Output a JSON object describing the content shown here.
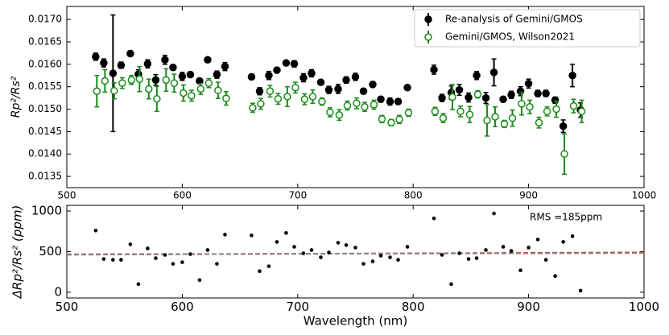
{
  "chart_data": [
    {
      "type": "errorbar",
      "ylabel": "Rp²/Rs²",
      "xlim": [
        500,
        1000
      ],
      "xticks": [
        500,
        600,
        700,
        800,
        900,
        1000
      ],
      "ylim": [
        0.01325,
        0.01729
      ],
      "yticks": [
        {
          "value": 0.0135,
          "label": "0.0135"
        },
        {
          "value": 0.014,
          "label": "0.0140"
        },
        {
          "value": 0.0145,
          "label": "0.0145"
        },
        {
          "value": 0.015,
          "label": "0.0150"
        },
        {
          "value": 0.0155,
          "label": "0.0155"
        },
        {
          "value": 0.016,
          "label": "0.0160"
        },
        {
          "value": 0.0165,
          "label": "0.0165"
        },
        {
          "value": 0.017,
          "label": "0.0170"
        }
      ],
      "legend": "upper right",
      "series": [
        {
          "name": "Re-analysis of Gemini/GMOS",
          "color": "#000000",
          "marker": "filled",
          "x": [
            525,
            532,
            540,
            547,
            555,
            562,
            570,
            577,
            585,
            592,
            600,
            607,
            615,
            622,
            630,
            637,
            660,
            667,
            675,
            682,
            690,
            697,
            705,
            712,
            720,
            727,
            735,
            742,
            750,
            757,
            765,
            772,
            780,
            787,
            795,
            818,
            825,
            833,
            840,
            848,
            855,
            863,
            870,
            878,
            885,
            893,
            900,
            908,
            915,
            923,
            930,
            938,
            945
          ],
          "values": [
            0.01617,
            0.01603,
            0.0158,
            0.01598,
            0.01624,
            0.01578,
            0.01601,
            0.01565,
            0.0161,
            0.01593,
            0.01573,
            0.01577,
            0.01563,
            0.0161,
            0.01577,
            0.01595,
            0.01572,
            0.0154,
            0.01575,
            0.01587,
            0.01603,
            0.01601,
            0.0157,
            0.0158,
            0.0156,
            0.01543,
            0.01545,
            0.01565,
            0.01572,
            0.0154,
            0.01555,
            0.01522,
            0.01517,
            0.01517,
            0.01548,
            0.01588,
            0.01525,
            0.01537,
            0.01543,
            0.01526,
            0.01575,
            0.01525,
            0.01582,
            0.01522,
            0.01532,
            0.0154,
            0.01557,
            0.01535,
            0.01535,
            0.0152,
            0.01462,
            0.01575,
            0.01498
          ],
          "errors": [
            8e-05,
            9e-05,
            0.0013,
            7e-05,
            6e-05,
            0.0001,
            9e-05,
            0.00012,
            0.0001,
            6e-05,
            9e-05,
            6e-05,
            5e-05,
            5e-05,
            8e-05,
            9e-05,
            6e-05,
            8e-05,
            9e-05,
            6e-05,
            5e-05,
            7e-05,
            9e-05,
            8e-05,
            5e-05,
            8e-05,
            0.0001,
            7e-05,
            8e-05,
            6e-05,
            6e-05,
            6e-05,
            8e-05,
            6e-05,
            5e-05,
            0.0001,
            8e-05,
            0.00015,
            0.00012,
            0.0001,
            9e-05,
            0.00012,
            0.0003,
            6e-05,
            8e-05,
            0.0001,
            0.0001,
            7e-05,
            7e-05,
            7e-05,
            0.00014,
            0.00025,
            0.00016
          ]
        },
        {
          "name": "Gemini/GMOS, Wilson2021",
          "color": "#1a8a1a",
          "marker": "open",
          "x": [
            526,
            533,
            541,
            548,
            556,
            563,
            571,
            578,
            586,
            593,
            601,
            608,
            616,
            623,
            631,
            638,
            661,
            668,
            676,
            683,
            691,
            698,
            706,
            713,
            721,
            728,
            736,
            743,
            751,
            758,
            766,
            773,
            781,
            788,
            796,
            819,
            826,
            834,
            841,
            849,
            856,
            864,
            871,
            879,
            886,
            894,
            901,
            909,
            916,
            924,
            931,
            939,
            946
          ],
          "values": [
            0.0154,
            0.01563,
            0.01541,
            0.01558,
            0.01565,
            0.01567,
            0.01545,
            0.01523,
            0.01565,
            0.01558,
            0.01536,
            0.0153,
            0.01545,
            0.01558,
            0.01542,
            0.01524,
            0.01503,
            0.01512,
            0.0154,
            0.01523,
            0.01528,
            0.01548,
            0.01522,
            0.01528,
            0.01517,
            0.01493,
            0.01487,
            0.01508,
            0.01513,
            0.01505,
            0.0151,
            0.01478,
            0.0147,
            0.01477,
            0.01492,
            0.01495,
            0.0148,
            0.01527,
            0.01495,
            0.01488,
            0.01533,
            0.01475,
            0.01483,
            0.01467,
            0.0148,
            0.01512,
            0.01505,
            0.0147,
            0.01495,
            0.015,
            0.014,
            0.01507,
            0.01495
          ],
          "errors": [
            0.00035,
            0.00025,
            0.00018,
            0.00012,
            0.0001,
            0.00028,
            0.00022,
            0.00028,
            0.00025,
            0.0002,
            0.00018,
            0.00012,
            0.00012,
            0.0001,
            0.00018,
            0.00015,
            0.0001,
            0.00012,
            0.00013,
            0.00012,
            0.00022,
            0.00012,
            0.00012,
            0.00015,
            8e-05,
            0.0001,
            0.00012,
            0.0001,
            0.00012,
            0.0001,
            0.0001,
            8e-05,
            7e-05,
            9e-05,
            8e-05,
            9e-05,
            0.0001,
            0.00028,
            0.00012,
            0.00018,
            8e-05,
            0.00035,
            0.00022,
            8e-05,
            0.00018,
            0.00025,
            0.00015,
            0.00012,
            0.0001,
            0.00018,
            0.00045,
            0.00015,
            0.00025
          ]
        }
      ]
    },
    {
      "type": "scatter",
      "xlabel": "Wavelength (nm)",
      "ylabel": "ΔRp²/Rs² (ppm)",
      "annotation": "RMS =185ppm",
      "xlim": [
        500,
        1000
      ],
      "xticks": [
        500,
        600,
        700,
        800,
        900,
        1000
      ],
      "ylim": [
        -70,
        1070
      ],
      "yticks": [
        0,
        500,
        1000
      ],
      "color": "#000000",
      "x": [
        525,
        532,
        540,
        547,
        555,
        562,
        570,
        577,
        585,
        592,
        600,
        607,
        615,
        622,
        630,
        637,
        660,
        667,
        675,
        682,
        690,
        697,
        705,
        712,
        720,
        727,
        735,
        742,
        750,
        757,
        765,
        772,
        780,
        787,
        795,
        818,
        825,
        833,
        840,
        848,
        855,
        863,
        870,
        878,
        885,
        893,
        900,
        908,
        915,
        923,
        930,
        938,
        945
      ],
      "values": [
        760,
        410,
        400,
        400,
        590,
        100,
        540,
        420,
        460,
        350,
        370,
        470,
        150,
        520,
        350,
        710,
        700,
        260,
        320,
        620,
        730,
        560,
        480,
        520,
        430,
        490,
        610,
        580,
        550,
        350,
        380,
        450,
        430,
        400,
        560,
        910,
        460,
        100,
        480,
        410,
        420,
        520,
        970,
        560,
        510,
        270,
        550,
        650,
        400,
        200,
        620,
        690,
        20
      ],
      "lines": [
        {
          "color": "#dd2222",
          "x": [
            500,
            1000
          ],
          "values": [
            463,
            490
          ]
        },
        {
          "color": "#888888",
          "x": [
            500,
            1000
          ],
          "values": [
            468,
            482
          ]
        }
      ]
    }
  ]
}
